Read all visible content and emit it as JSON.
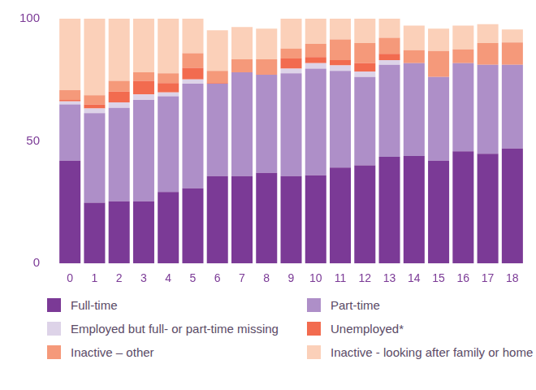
{
  "chart_data": {
    "type": "bar",
    "categories": [
      "0",
      "1",
      "2",
      "3",
      "4",
      "5",
      "6",
      "7",
      "8",
      "9",
      "10",
      "11",
      "12",
      "13",
      "14",
      "15",
      "16",
      "17",
      "18"
    ],
    "series": [
      {
        "name": "Full-time",
        "color": "#7b3a96",
        "values": [
          42,
          24.8,
          25.4,
          25.4,
          29.2,
          30.7,
          35.7,
          35.7,
          37,
          35.7,
          36,
          39.2,
          40.1,
          43.6,
          43.9,
          42,
          45.8,
          44.8,
          47
        ]
      },
      {
        "name": "Part-time",
        "color": "#ae8fc8",
        "values": [
          23,
          36.6,
          38.2,
          41.4,
          39.1,
          42.7,
          37.7,
          42.4,
          40.1,
          42,
          43.6,
          39.5,
          36.1,
          37.6,
          37.9,
          34.2,
          36,
          36.4,
          34.2
        ]
      },
      {
        "name": "Employed but full- or part-time missing",
        "color": "#ddd3e8",
        "values": [
          1.2,
          1.9,
          2.2,
          2.2,
          1.6,
          1.8,
          0,
          0,
          0,
          1.9,
          2.2,
          2.2,
          2.2,
          1.9,
          0,
          0,
          0,
          0,
          0
        ]
      },
      {
        "name": "Unemployed*",
        "color": "#f26b4f",
        "values": [
          0.6,
          1.6,
          4.4,
          5.6,
          3.8,
          4.7,
          0.3,
          0,
          0,
          4.1,
          2.5,
          2.2,
          3.4,
          2.5,
          0,
          0,
          0,
          0,
          0
        ]
      },
      {
        "name": "Inactive – other",
        "color": "#f5997a",
        "values": [
          4,
          3.8,
          4.4,
          3.5,
          4,
          6,
          5,
          5.3,
          6.3,
          4.1,
          5.4,
          8.4,
          8.2,
          6.6,
          5.3,
          10.6,
          5.7,
          8.8,
          9.1
        ]
      },
      {
        "name": "Inactive - looking after family or home",
        "color": "#fbd0b9",
        "values": [
          29.2,
          31.3,
          25.4,
          21.9,
          22.3,
          14.1,
          16.6,
          13.2,
          12.5,
          12.2,
          10.3,
          8.5,
          10,
          7.8,
          10.1,
          9.1,
          9.7,
          7.8,
          5.3
        ]
      }
    ],
    "ylim": [
      0,
      100
    ],
    "yticks": [
      0,
      50,
      100
    ],
    "stacked": true,
    "grid": false,
    "legend": "bottom"
  }
}
